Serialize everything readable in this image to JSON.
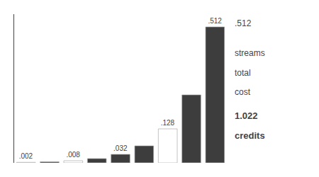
{
  "chart_data": {
    "type": "bar",
    "categories": [
      null,
      null,
      null,
      null,
      null,
      null,
      null,
      null,
      null
    ],
    "values": [
      0.002,
      0.004,
      0.008,
      0.016,
      0.032,
      0.064,
      0.128,
      0.256,
      0.512
    ],
    "colors": [
      "#ffffff",
      "#3d3d3d",
      "#ffffff",
      "#3d3d3d",
      "#3d3d3d",
      "#3d3d3d",
      "#ffffff",
      "#3d3d3d",
      "#3d3d3d"
    ],
    "data_labels": true,
    "value_labels": [
      ".002",
      null,
      ".008",
      null,
      ".032",
      null,
      ".128",
      null,
      ".512"
    ],
    "annotations": [
      ".512",
      "streams",
      "total",
      "cost",
      "1.022",
      "credits"
    ],
    "ylim": [
      0,
      0.56
    ],
    "yticks": [
      0,
      0.08,
      0.16,
      0.24,
      0.32,
      0.4,
      0.48,
      0.56
    ],
    "tick_labels": false,
    "grid": false
  }
}
